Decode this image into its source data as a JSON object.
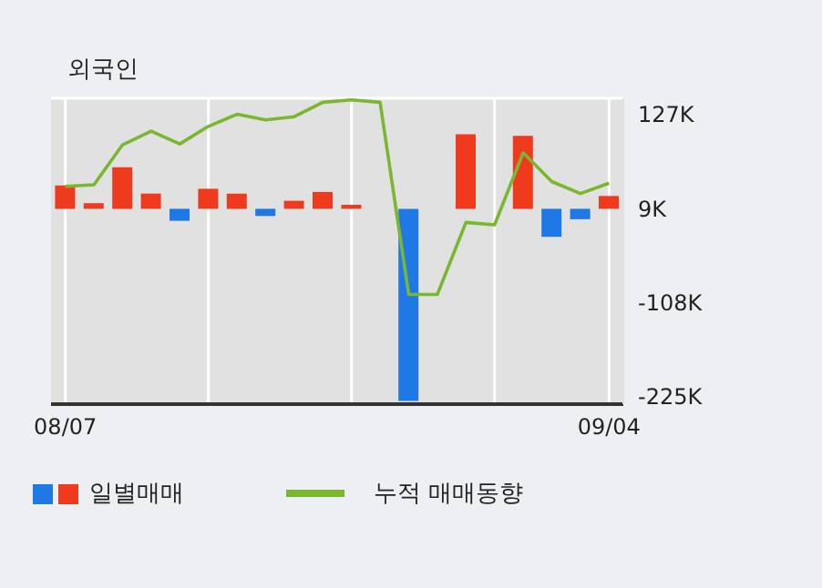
{
  "chart_data": {
    "type": "bar",
    "title": "외국인",
    "categories": [
      "08/07",
      null,
      null,
      null,
      null,
      null,
      null,
      null,
      null,
      null,
      null,
      null,
      null,
      null,
      null,
      null,
      null,
      null,
      null,
      "09/04"
    ],
    "series": [
      {
        "name": "일별매매",
        "base": [
          9,
          9,
          9,
          9,
          9,
          9,
          9,
          9,
          9,
          9,
          9,
          null,
          9,
          null,
          9,
          null,
          9,
          9,
          9,
          9
        ],
        "values": [
          29,
          7,
          52,
          19,
          -15,
          25,
          19,
          -9,
          10,
          21,
          5,
          null,
          -240,
          null,
          93,
          null,
          91,
          -35,
          -13,
          16
        ],
        "colors": [
          "#f03a1e",
          "#f03a1e",
          "#f03a1e",
          "#f03a1e",
          "#1e78e6",
          "#f03a1e",
          "#f03a1e",
          "#1e78e6",
          "#f03a1e",
          "#f03a1e",
          "#f03a1e",
          "#f03a1e",
          "#1e78e6",
          "#f03a1e",
          "#f03a1e",
          "#f03a1e",
          "#f03a1e",
          "#1e78e6",
          "#1e78e6",
          "#f03a1e"
        ]
      },
      {
        "name": "누적 매매동향",
        "type": "line",
        "color": "#7ab730",
        "values": [
          37,
          39,
          89,
          106,
          90,
          112,
          127,
          120,
          124,
          142,
          145,
          142,
          -98,
          -98,
          -8,
          -11,
          79,
          43,
          28,
          41
        ]
      }
    ],
    "ylim": [
      -235,
      147
    ],
    "yticks": [
      {
        "value": 127,
        "label": "127K"
      },
      {
        "value": 9,
        "label": "9K"
      },
      {
        "value": -108,
        "label": "-108K"
      },
      {
        "value": -225,
        "label": "-225K"
      }
    ],
    "grid": true,
    "legend": "bottom left",
    "marker": "none",
    "line_style": "solid"
  }
}
